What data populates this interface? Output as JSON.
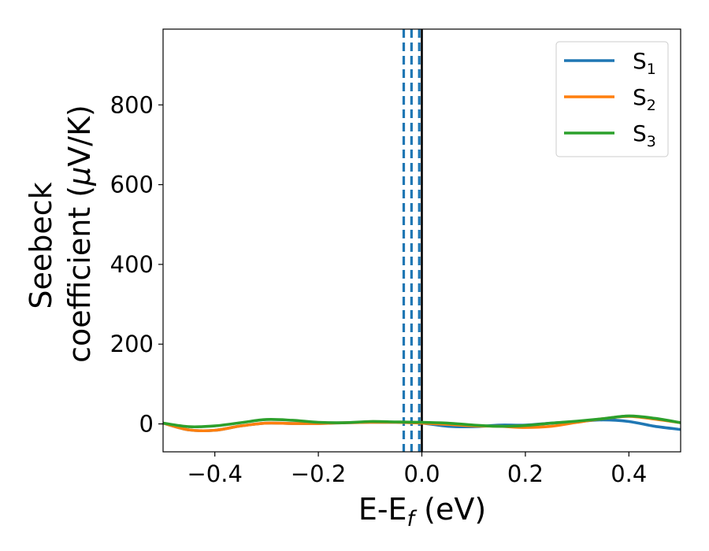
{
  "chart_data": {
    "type": "line",
    "title": "",
    "xlabel": {
      "base": "E-E",
      "sub": "f",
      "rest": " (eV)"
    },
    "ylabel": {
      "line1": "Seebeck",
      "line2_text": "coefficient  (",
      "mu": "μ",
      "line2_rest": "V/K)"
    },
    "xlim": [
      -0.5,
      0.5
    ],
    "ylim": [
      -70,
      990
    ],
    "x_ticks": [
      -0.4,
      -0.2,
      0.0,
      0.2,
      0.4
    ],
    "x_tick_labels": [
      "−0.4",
      "−0.2",
      "0.0",
      "0.2",
      "0.4"
    ],
    "y_ticks": [
      0,
      200,
      400,
      600,
      800
    ],
    "y_tick_labels": [
      "0",
      "200",
      "400",
      "600",
      "800"
    ],
    "grid": false,
    "legend_position": "top-right",
    "fermi_line": {
      "x": 0.0,
      "color": "#000000",
      "style": "solid"
    },
    "dashed_lines": {
      "x": [
        -0.035,
        -0.02,
        -0.005
      ],
      "color": "#1f77b4",
      "style": "dashed"
    },
    "series": [
      {
        "name": "S",
        "sub": "1",
        "color": "#1f77b4",
        "x": [
          -0.5,
          -0.45,
          -0.4,
          -0.35,
          -0.3,
          -0.25,
          -0.2,
          -0.15,
          -0.1,
          -0.05,
          0.0,
          0.05,
          0.1,
          0.15,
          0.2,
          0.25,
          0.3,
          0.35,
          0.4,
          0.45,
          0.5
        ],
        "y": [
          2,
          -15,
          -16,
          -5,
          2,
          1,
          1,
          3,
          4,
          4,
          2,
          -6,
          -7,
          -3,
          -3,
          2,
          6,
          10,
          6,
          -6,
          -14
        ]
      },
      {
        "name": "S",
        "sub": "2",
        "color": "#ff7f0e",
        "x": [
          -0.5,
          -0.45,
          -0.4,
          -0.35,
          -0.3,
          -0.25,
          -0.2,
          -0.15,
          -0.1,
          -0.05,
          0.0,
          0.05,
          0.1,
          0.15,
          0.2,
          0.25,
          0.3,
          0.35,
          0.4,
          0.45,
          0.5
        ],
        "y": [
          2,
          -15,
          -16,
          -5,
          2,
          1,
          1,
          3,
          4,
          4,
          2,
          -1,
          -5,
          -6,
          -9,
          -6,
          4,
          13,
          19,
          12,
          3
        ]
      },
      {
        "name": "S",
        "sub": "3",
        "color": "#2ca02c",
        "x": [
          -0.5,
          -0.45,
          -0.4,
          -0.35,
          -0.3,
          -0.25,
          -0.2,
          -0.15,
          -0.1,
          -0.05,
          0.0,
          0.05,
          0.1,
          0.15,
          0.2,
          0.25,
          0.3,
          0.35,
          0.4,
          0.45,
          0.5
        ],
        "y": [
          2,
          -7,
          -5,
          3,
          11,
          9,
          4,
          3,
          6,
          5,
          4,
          2,
          -3,
          -6,
          -4,
          2,
          7,
          13,
          20,
          14,
          3
        ]
      }
    ]
  }
}
